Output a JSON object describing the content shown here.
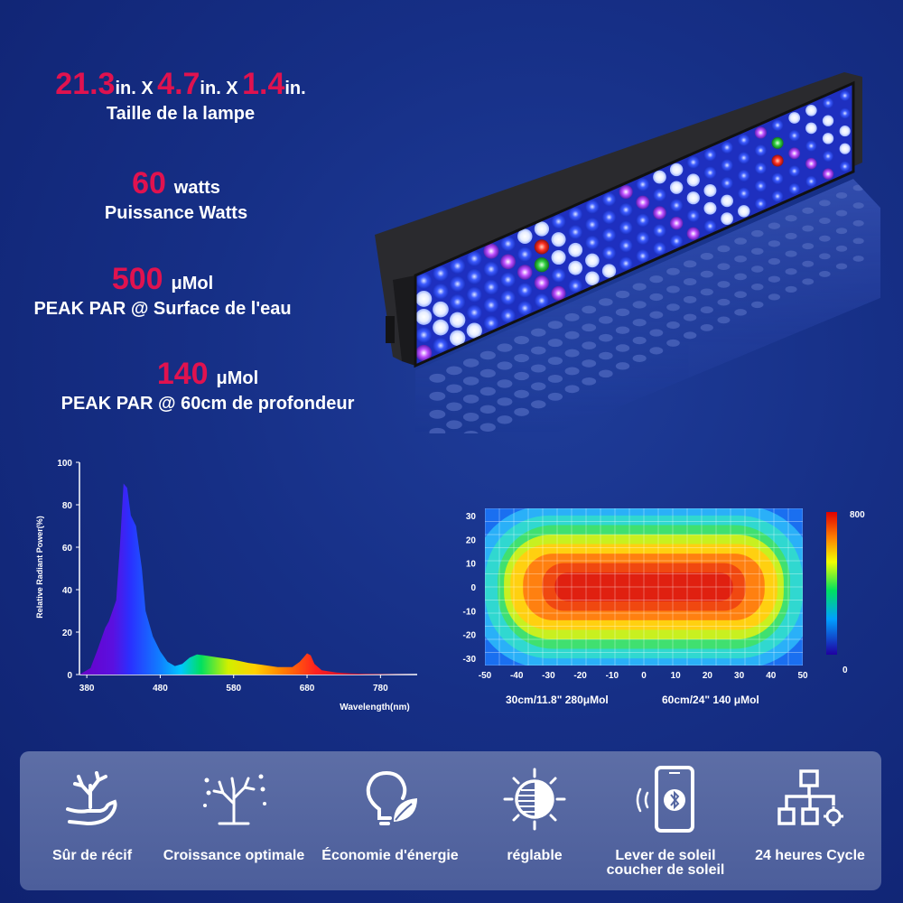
{
  "specs": {
    "size": {
      "d1": "21.3",
      "u1": "in. X",
      "d2": "4.7",
      "u2": "in. X",
      "d3": "1.4",
      "u3": "in.",
      "caption": "Taille de la lampe"
    },
    "power": {
      "value": "60",
      "unit": "watts",
      "caption": "Puissance Watts"
    },
    "par_surface": {
      "value": "500",
      "unit": "μMol",
      "caption": "PEAK PAR @ Surface de l'eau"
    },
    "par_depth": {
      "value": "140",
      "unit": "μMol",
      "caption": "PEAK PAR @ 60cm de profondeur"
    }
  },
  "chart_data": [
    {
      "type": "area",
      "ylabel": "Relative Radiant Power(%)",
      "xlabel": "Wavelength(nm)",
      "ylim": [
        0,
        100
      ],
      "xlim": [
        370,
        830
      ],
      "xticks": [
        "380",
        "480",
        "580",
        "680",
        "780"
      ],
      "yticks": [
        "0",
        "20",
        "40",
        "60",
        "80",
        "100"
      ],
      "x": [
        370,
        385,
        395,
        405,
        410,
        420,
        425,
        430,
        435,
        440,
        447,
        455,
        460,
        470,
        480,
        490,
        500,
        510,
        520,
        530,
        540,
        560,
        580,
        600,
        620,
        640,
        660,
        670,
        675,
        680,
        685,
        690,
        700,
        720,
        740,
        760,
        780,
        800,
        830
      ],
      "y": [
        0,
        3,
        12,
        22,
        25,
        35,
        60,
        90,
        88,
        75,
        70,
        50,
        30,
        18,
        11,
        6,
        4,
        5,
        8,
        9.5,
        9,
        8,
        7,
        5.5,
        4.5,
        3.5,
        3.5,
        6,
        8,
        10,
        9,
        5,
        2,
        1,
        0.5,
        0.3,
        0.2,
        0.1,
        0
      ]
    },
    {
      "type": "heatmap",
      "xticks": [
        "-50",
        "-40",
        "-30",
        "-20",
        "-10",
        "0",
        "10",
        "20",
        "30",
        "40",
        "50"
      ],
      "yticks": [
        "30",
        "20",
        "10",
        "0",
        "-10",
        "-20",
        "-30"
      ],
      "xlim": [
        -50,
        50
      ],
      "ylim": [
        -33,
        33
      ],
      "colorbar": {
        "max_label": "800",
        "min_label": "0"
      },
      "notes": [
        "30cm/11.8\"  280μMol",
        "60cm/24\"  140 μMol"
      ]
    }
  ],
  "features": [
    {
      "icon": "coral-hand-icon",
      "label": "Sûr de récif"
    },
    {
      "icon": "coral-growth-icon",
      "label": "Croissance optimale"
    },
    {
      "icon": "bulb-leaf-icon",
      "label": "Économie d'énergie"
    },
    {
      "icon": "dimmer-icon",
      "label": "réglable"
    },
    {
      "icon": "bluetooth-phone-icon",
      "label": "Lever de soleil",
      "label2": "coucher de soleil"
    },
    {
      "icon": "network-cycle-icon",
      "label": "24 heures Cycle"
    }
  ],
  "colors": {
    "accent": "#e0124f",
    "panel": "#5567a1"
  }
}
